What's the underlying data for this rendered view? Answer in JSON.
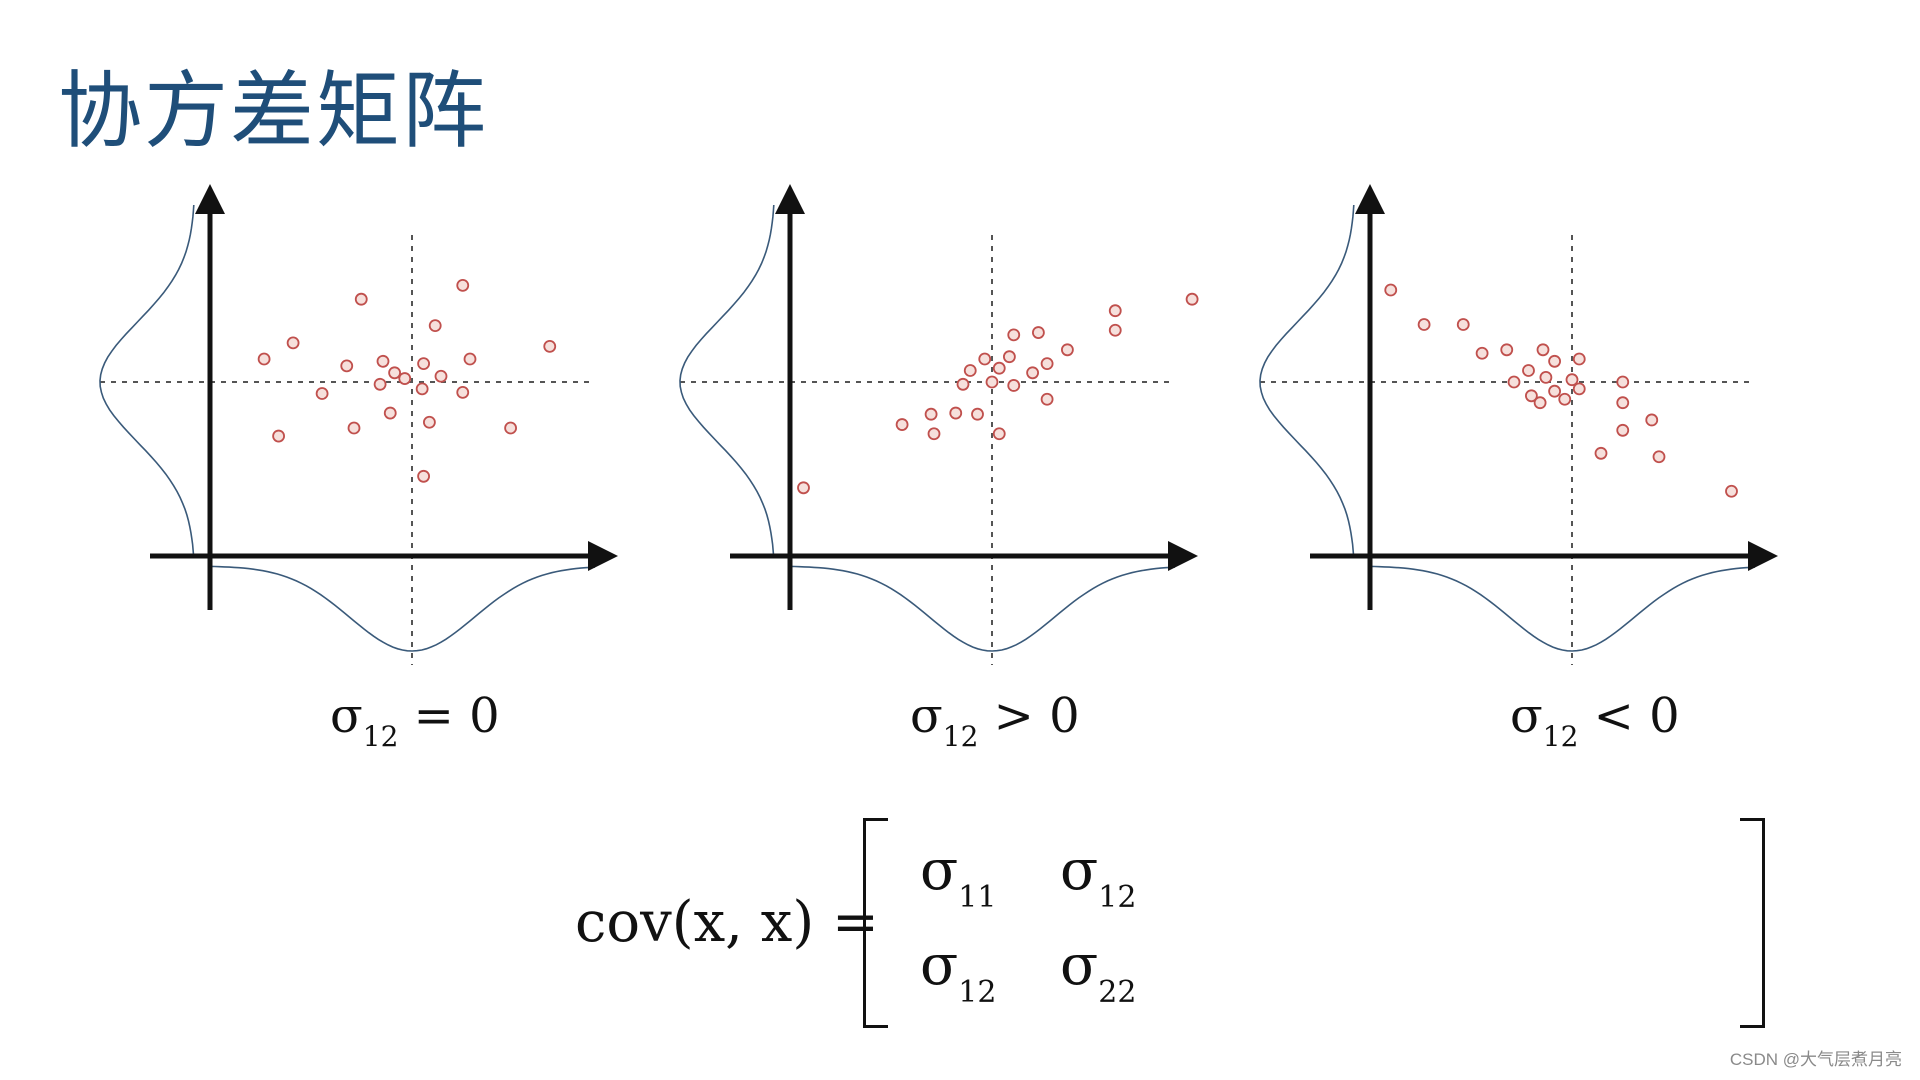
{
  "title": "协方差矩阵",
  "panels": [
    {
      "caption_symbol": "σ",
      "caption_sub": "12",
      "caption_rel": "= 0",
      "points": [
        [
          -0.35,
          0.72
        ],
        [
          0.35,
          0.84
        ],
        [
          -1.02,
          0.2
        ],
        [
          -0.82,
          0.34
        ],
        [
          0.16,
          0.49
        ],
        [
          0.95,
          0.31
        ],
        [
          -0.45,
          0.14
        ],
        [
          -0.2,
          0.18
        ],
        [
          0.08,
          0.16
        ],
        [
          0.4,
          0.2
        ],
        [
          -0.12,
          0.08
        ],
        [
          0.2,
          0.05
        ],
        [
          -0.05,
          0.03
        ],
        [
          -0.22,
          -0.02
        ],
        [
          0.07,
          -0.06
        ],
        [
          -0.62,
          -0.1
        ],
        [
          0.35,
          -0.09
        ],
        [
          -0.15,
          -0.27
        ],
        [
          0.12,
          -0.35
        ],
        [
          -0.4,
          -0.4
        ],
        [
          0.68,
          -0.4
        ],
        [
          -0.92,
          -0.47
        ],
        [
          0.08,
          -0.82
        ]
      ]
    },
    {
      "caption_symbol": "σ",
      "caption_sub": "12",
      "caption_rel": "> 0",
      "points": [
        [
          1.38,
          0.72
        ],
        [
          0.85,
          0.62
        ],
        [
          0.85,
          0.45
        ],
        [
          0.15,
          0.41
        ],
        [
          0.32,
          0.43
        ],
        [
          0.52,
          0.28
        ],
        [
          -0.05,
          0.2
        ],
        [
          0.12,
          0.22
        ],
        [
          0.38,
          0.16
        ],
        [
          -0.15,
          0.1
        ],
        [
          0.05,
          0.12
        ],
        [
          0.28,
          0.08
        ],
        [
          -0.2,
          -0.02
        ],
        [
          0.0,
          0.0
        ],
        [
          0.15,
          -0.03
        ],
        [
          -0.42,
          -0.28
        ],
        [
          -0.25,
          -0.27
        ],
        [
          -0.1,
          -0.28
        ],
        [
          0.38,
          -0.15
        ],
        [
          -0.62,
          -0.37
        ],
        [
          -0.4,
          -0.45
        ],
        [
          0.05,
          -0.45
        ],
        [
          -1.3,
          -0.92
        ]
      ]
    },
    {
      "caption_symbol": "σ",
      "caption_sub": "12",
      "caption_rel": "< 0",
      "points": [
        [
          -1.25,
          0.8
        ],
        [
          -1.02,
          0.5
        ],
        [
          -0.75,
          0.5
        ],
        [
          -0.62,
          0.25
        ],
        [
          -0.45,
          0.28
        ],
        [
          -0.2,
          0.28
        ],
        [
          -0.3,
          0.1
        ],
        [
          -0.12,
          0.18
        ],
        [
          0.05,
          0.2
        ],
        [
          -0.4,
          0.0
        ],
        [
          -0.18,
          0.04
        ],
        [
          0.0,
          0.02
        ],
        [
          -0.28,
          -0.12
        ],
        [
          -0.12,
          -0.08
        ],
        [
          0.05,
          -0.06
        ],
        [
          -0.22,
          -0.18
        ],
        [
          -0.05,
          -0.15
        ],
        [
          0.35,
          0.0
        ],
        [
          0.35,
          -0.18
        ],
        [
          0.55,
          -0.33
        ],
        [
          0.35,
          -0.42
        ],
        [
          0.2,
          -0.62
        ],
        [
          0.6,
          -0.65
        ],
        [
          1.1,
          -0.95
        ]
      ]
    }
  ],
  "formula": {
    "lhs": "cov(x, x) =",
    "matrix": [
      [
        {
          "sym": "σ",
          "sub": "11"
        },
        {
          "sym": "σ",
          "sub": "12"
        }
      ],
      [
        {
          "sym": "σ",
          "sub": "12"
        },
        {
          "sym": "σ",
          "sub": "22"
        }
      ]
    ]
  },
  "watermark": "CSDN @大气层煮月亮",
  "colors": {
    "title": "#1f4e79",
    "axis": "#111111",
    "curve": "#3a5a7a",
    "dash": "#555555",
    "point_stroke": "#c0504d",
    "point_fill": "#f6e0dc"
  }
}
